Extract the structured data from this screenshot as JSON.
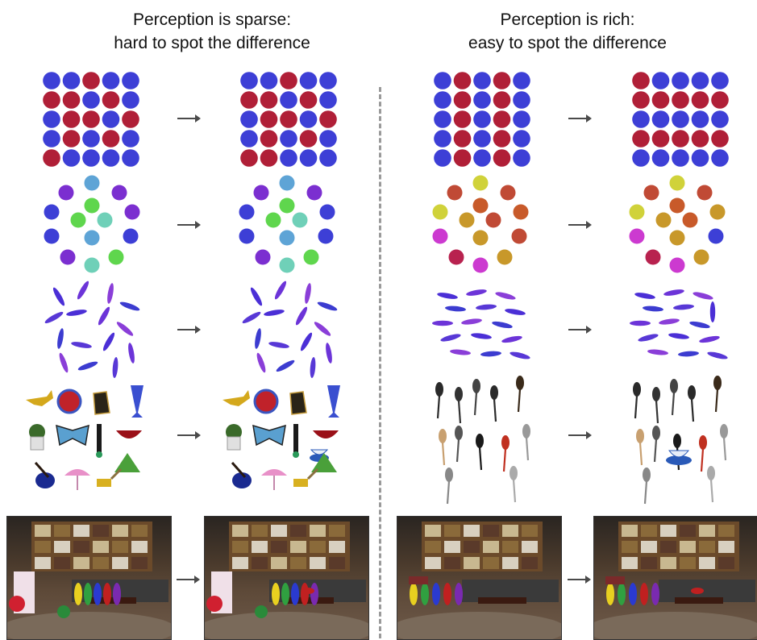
{
  "headings": {
    "sparse": {
      "line1": "Perception is sparse:",
      "line2": "hard to spot the difference"
    },
    "rich": {
      "line1": "Perception is rich:",
      "line2": "easy to spot the difference"
    }
  },
  "colors": {
    "blue": "#3d3fd6",
    "red": "#b01f37",
    "purple_ring": "#7b2fd0",
    "green": "#5fd64d",
    "teal": "#6fd0b8",
    "lightblue": "#5ea4d6",
    "mustard": "#d0d23a",
    "orange": "#c85a2a",
    "rust": "#c04a35",
    "magenta": "#cc3ad0",
    "crimson": "#b8224f",
    "gold": "#c8982a",
    "arrow": "#4a4a4a",
    "divider": "#9a9a9a"
  },
  "grids": {
    "sparse_before": [
      [
        "B",
        "B",
        "R",
        "B",
        "B"
      ],
      [
        "R",
        "R",
        "B",
        "R",
        "B"
      ],
      [
        "B",
        "R",
        "R",
        "B",
        "R"
      ],
      [
        "B",
        "R",
        "B",
        "R",
        "B"
      ],
      [
        "R",
        "B",
        "B",
        "B",
        "B"
      ]
    ],
    "sparse_after": [
      [
        "B",
        "B",
        "R",
        "B",
        "B"
      ],
      [
        "R",
        "R",
        "B",
        "R",
        "B"
      ],
      [
        "B",
        "R",
        "R",
        "B",
        "R"
      ],
      [
        "B",
        "R",
        "B",
        "R",
        "B"
      ],
      [
        "R",
        "R",
        "B",
        "B",
        "B"
      ]
    ],
    "rich_before": [
      [
        "B",
        "R",
        "B",
        "R",
        "B"
      ],
      [
        "B",
        "R",
        "B",
        "R",
        "B"
      ],
      [
        "B",
        "R",
        "B",
        "R",
        "B"
      ],
      [
        "B",
        "R",
        "B",
        "R",
        "B"
      ],
      [
        "B",
        "R",
        "B",
        "R",
        "B"
      ]
    ],
    "rich_after": [
      [
        "R",
        "B",
        "B",
        "B",
        "B"
      ],
      [
        "R",
        "R",
        "R",
        "R",
        "R"
      ],
      [
        "B",
        "B",
        "B",
        "B",
        "B"
      ],
      [
        "R",
        "R",
        "R",
        "R",
        "R"
      ],
      [
        "B",
        "B",
        "B",
        "B",
        "B"
      ]
    ]
  },
  "rings": {
    "sparse_before": [
      "lightblue",
      "purple",
      "purple",
      "blue",
      "green",
      "teal",
      "purple",
      "blue",
      "blue",
      "purple",
      "green",
      "teal",
      "lightblue"
    ],
    "sparse_after": [
      "lightblue",
      "purple",
      "blue",
      "blue",
      "green",
      "teal",
      "purple",
      "blue",
      "blue",
      "purple",
      "green",
      "teal",
      "lightblue"
    ],
    "rich_before": [
      "mustard",
      "rust",
      "orange",
      "rust",
      "gold",
      "magenta",
      "crimson",
      "magenta",
      "mustard",
      "rust",
      "orange",
      "rust",
      "gold"
    ],
    "rich_after": [
      "mustard",
      "rust",
      "gold",
      "blue",
      "gold",
      "magenta",
      "crimson",
      "magenta",
      "mustard",
      "rust",
      "orange",
      "orange",
      "gold"
    ]
  },
  "ellipses": {
    "sparse_before_angles": [
      60,
      120,
      100,
      20,
      -30,
      170,
      -60,
      40,
      -80,
      10,
      120,
      -100,
      70,
      -20,
      95
    ],
    "sparse_after_angles": [
      60,
      120,
      100,
      20,
      -30,
      170,
      -60,
      40,
      -80,
      10,
      120,
      -100,
      70,
      150,
      95
    ],
    "rich_before_angles": [
      10,
      -10,
      15,
      5,
      -5,
      10,
      0,
      -8,
      12,
      -15,
      8,
      -12,
      6,
      -4,
      14
    ],
    "rich_after_angles": [
      10,
      -10,
      15,
      5,
      -5,
      90,
      0,
      -8,
      12,
      -15,
      8,
      -12,
      6,
      -4,
      14
    ]
  }
}
